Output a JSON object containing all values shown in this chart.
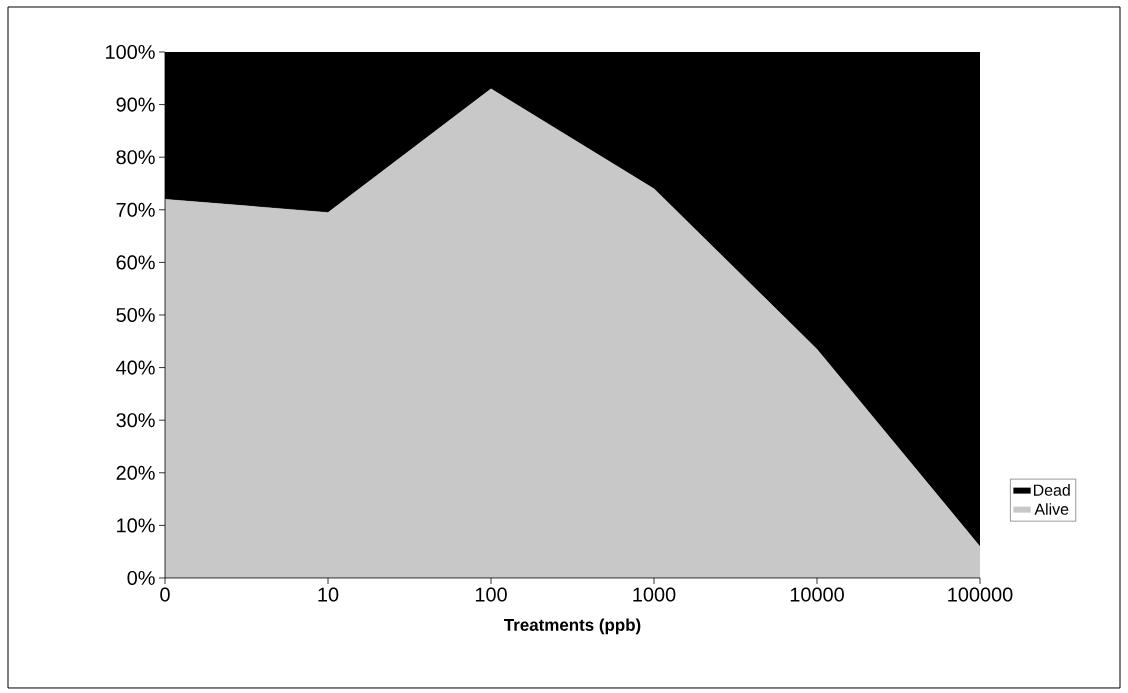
{
  "chart_data": {
    "type": "area",
    "stacked": true,
    "xlabel": "Treatments (ppb)",
    "categories": [
      "0",
      "10",
      "100",
      "1000",
      "10000",
      "100000"
    ],
    "series": [
      {
        "name": "Alive",
        "color": "#c8c8c8",
        "values": [
          72,
          69.5,
          93,
          74,
          43.5,
          6
        ]
      },
      {
        "name": "Dead",
        "color": "#000000",
        "values": [
          28,
          30.5,
          7,
          26,
          56.5,
          94
        ]
      }
    ],
    "ylim": [
      0,
      100
    ],
    "yticks": [
      {
        "value": 0,
        "label": "0%"
      },
      {
        "value": 10,
        "label": "10%"
      },
      {
        "value": 20,
        "label": "20%"
      },
      {
        "value": 30,
        "label": "30%"
      },
      {
        "value": 40,
        "label": "40%"
      },
      {
        "value": 50,
        "label": "50%"
      },
      {
        "value": 60,
        "label": "60%"
      },
      {
        "value": 70,
        "label": "70%"
      },
      {
        "value": 80,
        "label": "80%"
      },
      {
        "value": 90,
        "label": "90%"
      },
      {
        "value": 100,
        "label": "100%"
      }
    ],
    "legend": "right"
  }
}
